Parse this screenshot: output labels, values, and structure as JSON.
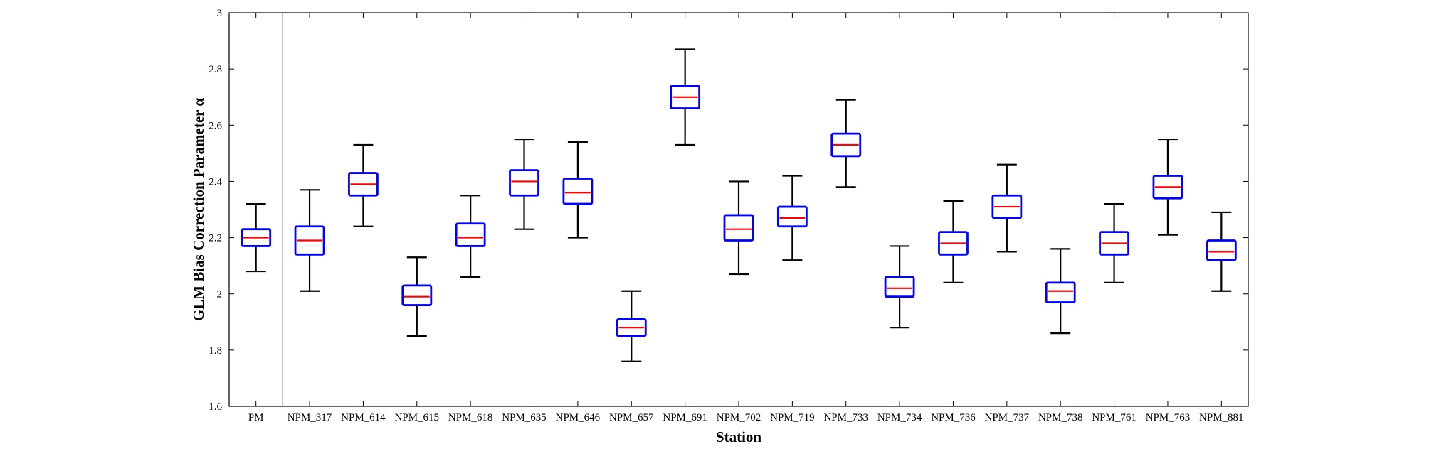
{
  "chart_data": {
    "type": "box",
    "title": "",
    "xlabel": "Station",
    "ylabel": "GLM Bias Correction Parameter α",
    "ylim": [
      1.6,
      3.0
    ],
    "yticks": [
      1.6,
      1.8,
      2.0,
      2.2,
      2.4,
      2.6,
      2.8,
      3.0
    ],
    "ytick_labels": [
      "1.6",
      "1.8",
      "2",
      "2.2",
      "2.4",
      "2.6",
      "2.8",
      "3"
    ],
    "grid": false,
    "separator_after_category": "PM",
    "colors": {
      "box": "#0000ff",
      "median": "#ff0000",
      "whisker": "#000000"
    },
    "categories": [
      "PM",
      "NPM_317",
      "NPM_614",
      "NPM_615",
      "NPM_618",
      "NPM_635",
      "NPM_646",
      "NPM_657",
      "NPM_691",
      "NPM_702",
      "NPM_719",
      "NPM_733",
      "NPM_734",
      "NPM_736",
      "NPM_737",
      "NPM_738",
      "NPM_761",
      "NPM_763",
      "NPM_881"
    ],
    "boxes": [
      {
        "min": 2.08,
        "q1": 2.17,
        "median": 2.2,
        "q3": 2.23,
        "max": 2.32
      },
      {
        "min": 2.01,
        "q1": 2.14,
        "median": 2.19,
        "q3": 2.24,
        "max": 2.37
      },
      {
        "min": 2.24,
        "q1": 2.35,
        "median": 2.39,
        "q3": 2.43,
        "max": 2.53
      },
      {
        "min": 1.85,
        "q1": 1.96,
        "median": 1.99,
        "q3": 2.03,
        "max": 2.13
      },
      {
        "min": 2.06,
        "q1": 2.17,
        "median": 2.2,
        "q3": 2.25,
        "max": 2.35
      },
      {
        "min": 2.23,
        "q1": 2.35,
        "median": 2.4,
        "q3": 2.44,
        "max": 2.55
      },
      {
        "min": 2.2,
        "q1": 2.32,
        "median": 2.36,
        "q3": 2.41,
        "max": 2.54
      },
      {
        "min": 1.76,
        "q1": 1.85,
        "median": 1.88,
        "q3": 1.91,
        "max": 2.01
      },
      {
        "min": 2.53,
        "q1": 2.66,
        "median": 2.7,
        "q3": 2.74,
        "max": 2.87
      },
      {
        "min": 2.07,
        "q1": 2.19,
        "median": 2.23,
        "q3": 2.28,
        "max": 2.4
      },
      {
        "min": 2.12,
        "q1": 2.24,
        "median": 2.27,
        "q3": 2.31,
        "max": 2.42
      },
      {
        "min": 2.38,
        "q1": 2.49,
        "median": 2.53,
        "q3": 2.57,
        "max": 2.69
      },
      {
        "min": 1.88,
        "q1": 1.99,
        "median": 2.02,
        "q3": 2.06,
        "max": 2.17
      },
      {
        "min": 2.04,
        "q1": 2.14,
        "median": 2.18,
        "q3": 2.22,
        "max": 2.33
      },
      {
        "min": 2.15,
        "q1": 2.27,
        "median": 2.31,
        "q3": 2.35,
        "max": 2.46
      },
      {
        "min": 1.86,
        "q1": 1.97,
        "median": 2.01,
        "q3": 2.04,
        "max": 2.16
      },
      {
        "min": 2.04,
        "q1": 2.14,
        "median": 2.18,
        "q3": 2.22,
        "max": 2.32
      },
      {
        "min": 2.21,
        "q1": 2.34,
        "median": 2.38,
        "q3": 2.42,
        "max": 2.55
      },
      {
        "min": 2.01,
        "q1": 2.12,
        "median": 2.15,
        "q3": 2.19,
        "max": 2.29
      }
    ]
  }
}
